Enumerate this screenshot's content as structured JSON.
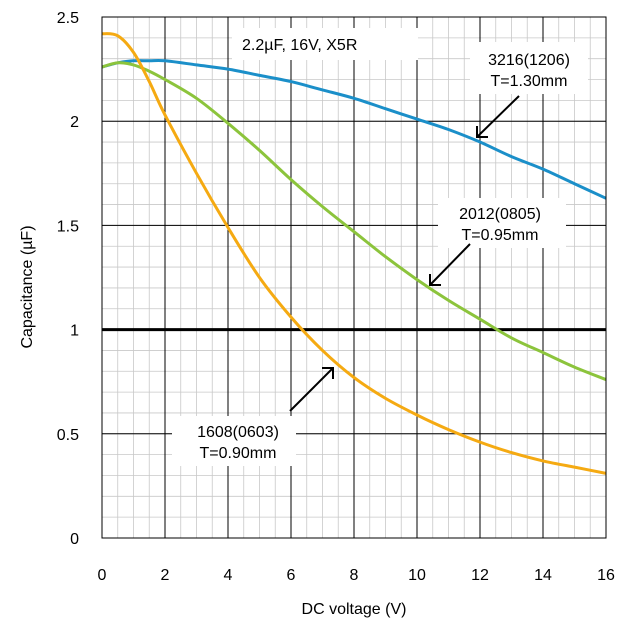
{
  "chart_data": {
    "type": "line",
    "title": "2.2µF, 16V, X5R",
    "xlabel": "DC voltage (V)",
    "ylabel": "Capacitance (µF)",
    "xlim": [
      0,
      16
    ],
    "ylim": [
      0,
      2.5
    ],
    "x_ticks": [
      0,
      2,
      4,
      6,
      8,
      10,
      12,
      14,
      16
    ],
    "y_ticks": [
      0,
      0.5,
      1,
      1.5,
      2,
      2.5
    ],
    "x_tick_labels": [
      "0",
      "2",
      "4",
      "6",
      "8",
      "10",
      "12",
      "14",
      "16"
    ],
    "y_tick_labels": [
      "0",
      "0.5",
      "1",
      "1.5",
      "2",
      "2.5"
    ],
    "grid": true,
    "reference_line": {
      "y": 1.0,
      "color": "#000000"
    },
    "series": [
      {
        "key": "s1206",
        "color": "#1b8fc9",
        "x": [
          0,
          0.5,
          1,
          1.5,
          2,
          3,
          4,
          5,
          6,
          7,
          8,
          9,
          10,
          11,
          12,
          13,
          14,
          15,
          16
        ],
        "values": [
          2.26,
          2.28,
          2.29,
          2.29,
          2.29,
          2.27,
          2.25,
          2.22,
          2.19,
          2.15,
          2.11,
          2.06,
          2.01,
          1.96,
          1.9,
          1.83,
          1.77,
          1.7,
          1.63
        ]
      },
      {
        "key": "s0805",
        "color": "#8cc43c",
        "x": [
          0,
          0.5,
          1,
          1.5,
          2,
          3,
          4,
          5,
          6,
          7,
          8,
          9,
          10,
          11,
          12,
          13,
          14,
          15,
          16
        ],
        "values": [
          2.26,
          2.28,
          2.27,
          2.24,
          2.2,
          2.11,
          1.99,
          1.86,
          1.72,
          1.59,
          1.47,
          1.35,
          1.24,
          1.14,
          1.05,
          0.96,
          0.89,
          0.82,
          0.76
        ]
      },
      {
        "key": "s0603",
        "color": "#f5aa12",
        "x": [
          0,
          0.5,
          1,
          1.5,
          2,
          3,
          4,
          5,
          6,
          7,
          8,
          9,
          10,
          11,
          12,
          13,
          14,
          15,
          16
        ],
        "values": [
          2.42,
          2.41,
          2.33,
          2.19,
          2.03,
          1.75,
          1.49,
          1.25,
          1.06,
          0.9,
          0.77,
          0.67,
          0.59,
          0.52,
          0.46,
          0.41,
          0.37,
          0.34,
          0.31
        ]
      }
    ],
    "annotations": [
      {
        "key": "a1206",
        "lines": [
          "3216(1206)",
          "T=1.30mm"
        ]
      },
      {
        "key": "a0805",
        "lines": [
          "2012(0805)",
          "T=0.95mm"
        ]
      },
      {
        "key": "a0603",
        "lines": [
          "1608(0603)",
          "T=0.90mm"
        ]
      }
    ]
  }
}
